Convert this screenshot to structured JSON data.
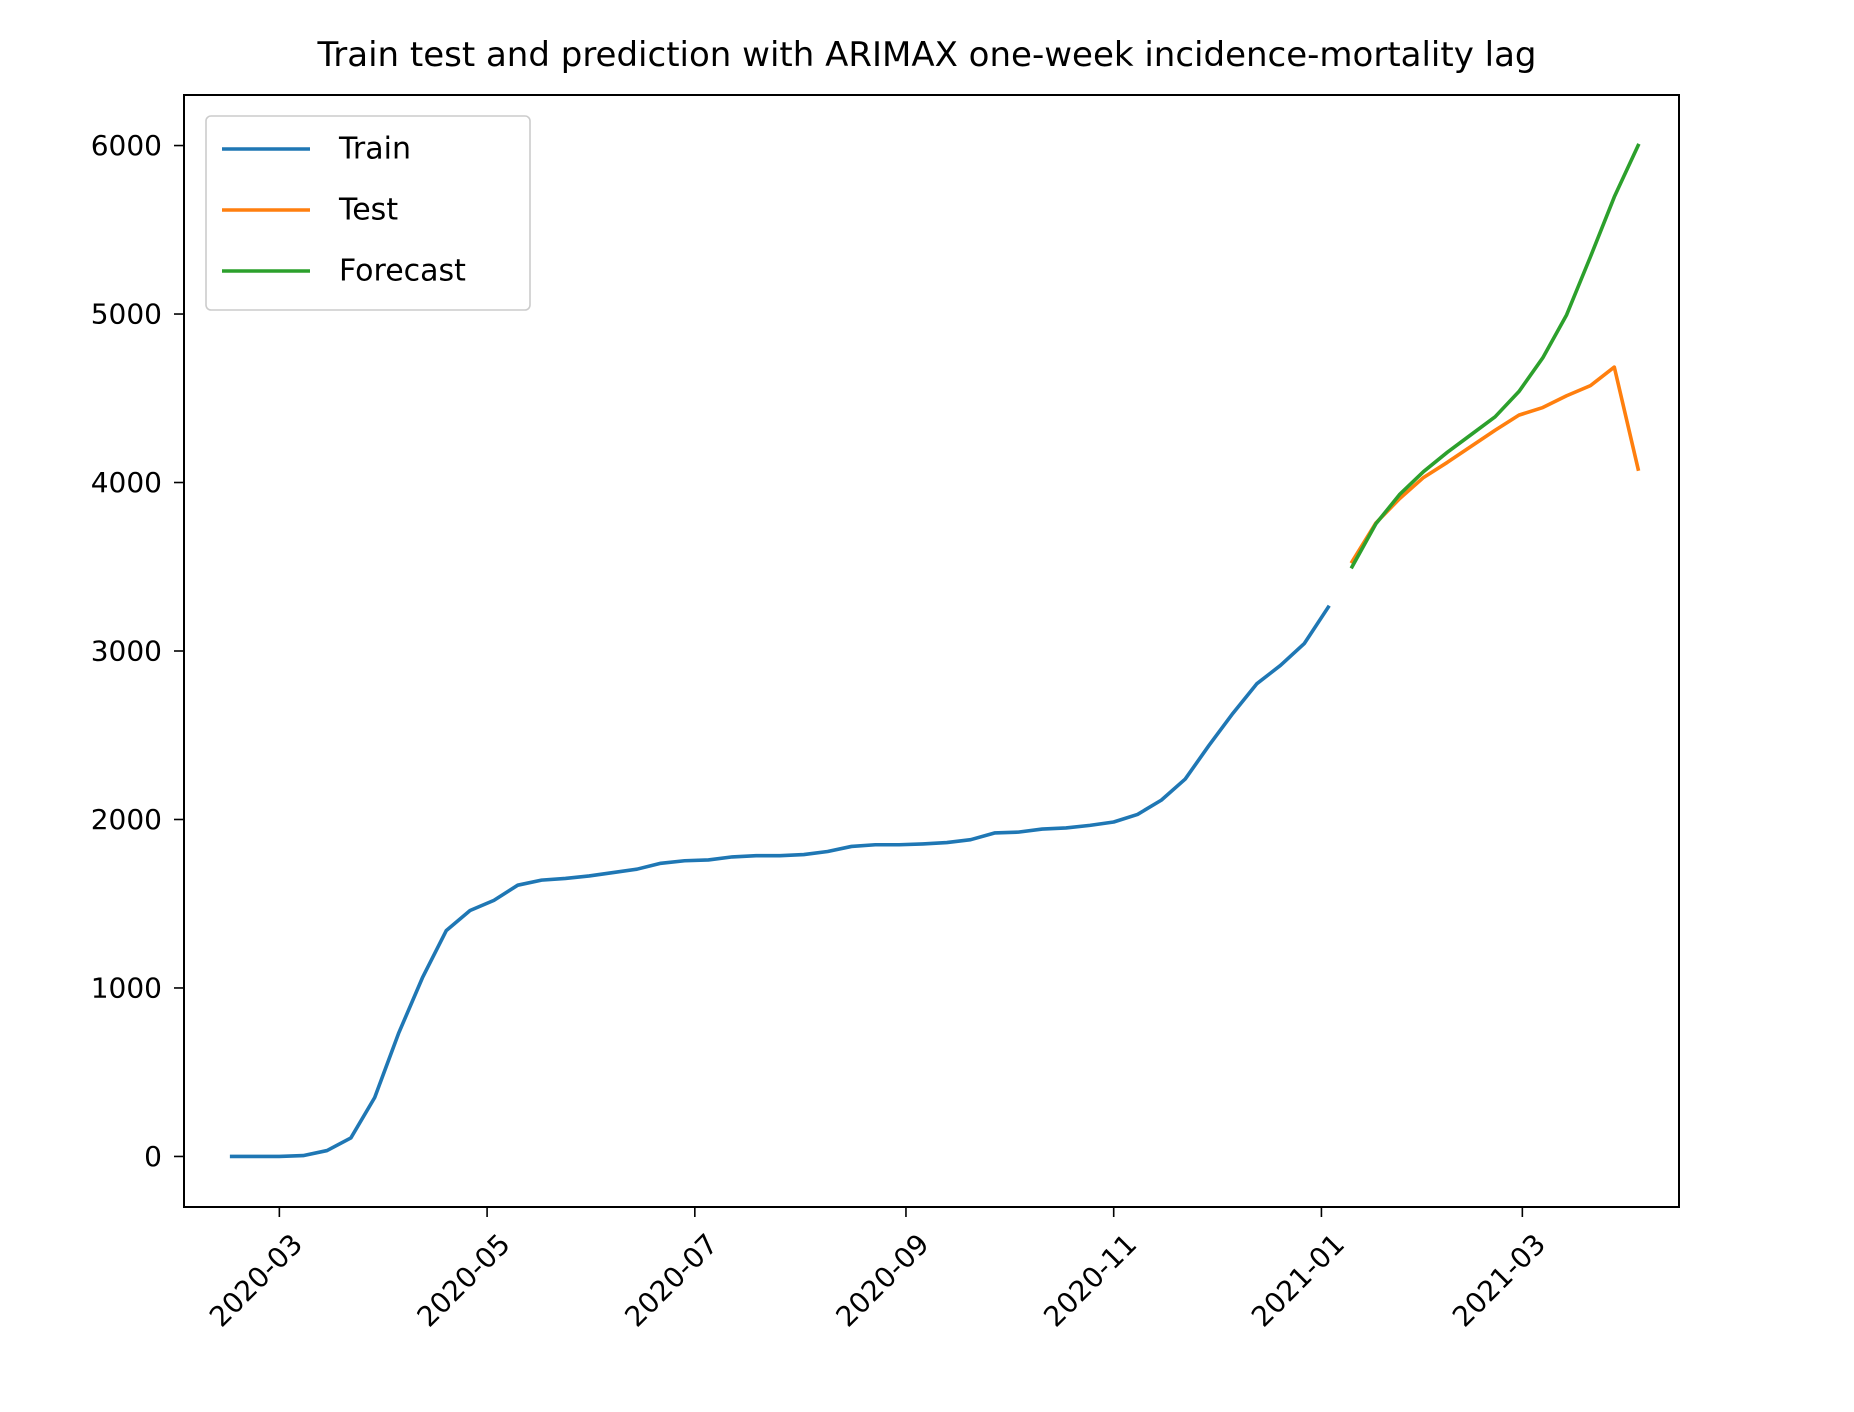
{
  "chart_data": {
    "type": "line",
    "title": "Train test and prediction with ARIMAX one-week incidence-mortality lag",
    "xlabel": "",
    "ylabel": "",
    "x_axis_type": "date",
    "xlim": [
      "2020-02-02",
      "2021-04-16"
    ],
    "ylim": [
      -300,
      6300
    ],
    "y_ticks": [
      0,
      1000,
      2000,
      3000,
      4000,
      5000,
      6000
    ],
    "y_tick_labels": [
      "0",
      "1000",
      "2000",
      "3000",
      "4000",
      "5000",
      "6000"
    ],
    "x_ticks": [
      "2020-03-01",
      "2020-05-01",
      "2020-07-01",
      "2020-09-01",
      "2020-11-01",
      "2021-01-01",
      "2021-03-01"
    ],
    "x_tick_labels": [
      "2020-03",
      "2020-05",
      "2020-07",
      "2020-09",
      "2020-11",
      "2021-01",
      "2021-03"
    ],
    "x_tick_rotation_deg": 45,
    "grid": false,
    "legend_position": "upper-left",
    "series": [
      {
        "name": "Train",
        "color": "#1f77b4",
        "points": [
          [
            "2020-02-16",
            0
          ],
          [
            "2020-02-23",
            0
          ],
          [
            "2020-03-01",
            0
          ],
          [
            "2020-03-08",
            5
          ],
          [
            "2020-03-15",
            35
          ],
          [
            "2020-03-22",
            110
          ],
          [
            "2020-03-29",
            350
          ],
          [
            "2020-04-05",
            730
          ],
          [
            "2020-04-12",
            1060
          ],
          [
            "2020-04-19",
            1340
          ],
          [
            "2020-04-26",
            1460
          ],
          [
            "2020-05-03",
            1520
          ],
          [
            "2020-05-10",
            1610
          ],
          [
            "2020-05-17",
            1640
          ],
          [
            "2020-05-24",
            1650
          ],
          [
            "2020-05-31",
            1665
          ],
          [
            "2020-06-07",
            1685
          ],
          [
            "2020-06-14",
            1705
          ],
          [
            "2020-06-21",
            1740
          ],
          [
            "2020-06-28",
            1755
          ],
          [
            "2020-07-05",
            1760
          ],
          [
            "2020-07-12",
            1778
          ],
          [
            "2020-07-19",
            1785
          ],
          [
            "2020-07-26",
            1785
          ],
          [
            "2020-08-02",
            1792
          ],
          [
            "2020-08-09",
            1810
          ],
          [
            "2020-08-16",
            1840
          ],
          [
            "2020-08-23",
            1850
          ],
          [
            "2020-08-30",
            1850
          ],
          [
            "2020-09-06",
            1855
          ],
          [
            "2020-09-13",
            1863
          ],
          [
            "2020-09-20",
            1880
          ],
          [
            "2020-09-27",
            1920
          ],
          [
            "2020-10-04",
            1925
          ],
          [
            "2020-10-11",
            1943
          ],
          [
            "2020-10-18",
            1950
          ],
          [
            "2020-10-25",
            1965
          ],
          [
            "2020-11-01",
            1985
          ],
          [
            "2020-11-08",
            2030
          ],
          [
            "2020-11-15",
            2115
          ],
          [
            "2020-11-22",
            2240
          ],
          [
            "2020-11-29",
            2440
          ],
          [
            "2020-12-06",
            2630
          ],
          [
            "2020-12-13",
            2805
          ],
          [
            "2020-12-20",
            2915
          ],
          [
            "2020-12-27",
            3045
          ],
          [
            "2021-01-03",
            3260
          ]
        ]
      },
      {
        "name": "Test",
        "color": "#ff7f0e",
        "points": [
          [
            "2021-01-10",
            3530
          ],
          [
            "2021-01-17",
            3760
          ],
          [
            "2021-01-24",
            3905
          ],
          [
            "2021-01-31",
            4030
          ],
          [
            "2021-02-07",
            4120
          ],
          [
            "2021-02-14",
            4215
          ],
          [
            "2021-02-21",
            4310
          ],
          [
            "2021-02-28",
            4400
          ],
          [
            "2021-03-07",
            4445
          ],
          [
            "2021-03-14",
            4515
          ],
          [
            "2021-03-21",
            4575
          ],
          [
            "2021-03-28",
            4685
          ],
          [
            "2021-04-04",
            4080
          ]
        ]
      },
      {
        "name": "Forecast",
        "color": "#2ca02c",
        "points": [
          [
            "2021-01-10",
            3500
          ],
          [
            "2021-01-17",
            3755
          ],
          [
            "2021-01-24",
            3930
          ],
          [
            "2021-01-31",
            4065
          ],
          [
            "2021-02-07",
            4180
          ],
          [
            "2021-02-14",
            4285
          ],
          [
            "2021-02-21",
            4390
          ],
          [
            "2021-02-28",
            4540
          ],
          [
            "2021-03-07",
            4740
          ],
          [
            "2021-03-14",
            4995
          ],
          [
            "2021-03-21",
            5340
          ],
          [
            "2021-03-28",
            5695
          ],
          [
            "2021-04-04",
            6000
          ]
        ]
      }
    ]
  }
}
